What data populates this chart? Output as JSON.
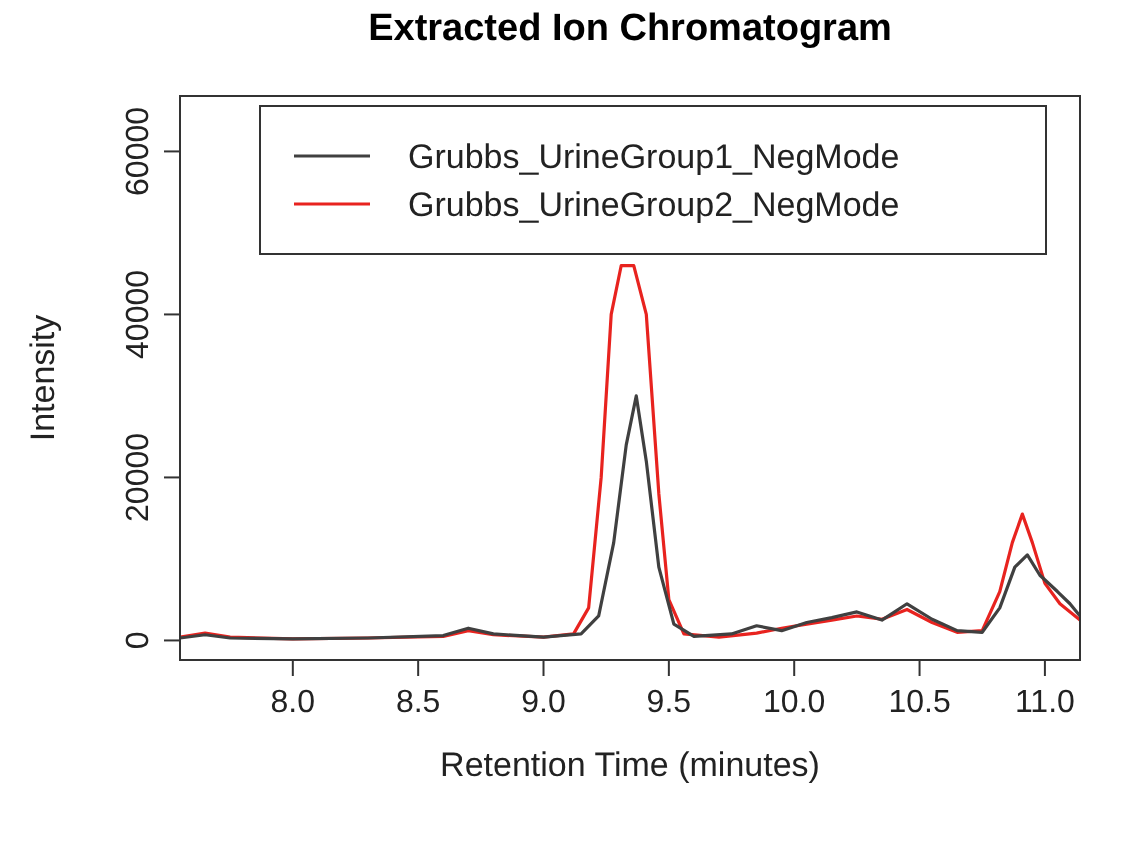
{
  "chart_data": {
    "type": "line",
    "title": "Extracted Ion Chromatogram",
    "xlabel": "Retention Time (minutes)",
    "ylabel": "Intensity",
    "xlim": [
      7.55,
      11.14
    ],
    "xticks": [
      {
        "value": 8,
        "label": "8.0"
      },
      8.5,
      {
        "value": 9,
        "label": "9.0"
      },
      9.5,
      {
        "value": 10,
        "label": "10.0"
      },
      10.5,
      {
        "value": 11,
        "label": "11.0"
      }
    ],
    "ylim": [
      -2400,
      66800
    ],
    "yticks": [
      0,
      20000,
      40000,
      60000
    ],
    "legend": "top right",
    "grid": false,
    "line_style": "solid",
    "series": [
      {
        "name": "Grubbs_UrineGroup1_NegMode",
        "color": "#404040",
        "x": [
          7.55,
          7.65,
          7.75,
          8.0,
          8.3,
          8.6,
          8.7,
          8.8,
          9.0,
          9.15,
          9.22,
          9.28,
          9.33,
          9.37,
          9.41,
          9.46,
          9.52,
          9.6,
          9.75,
          9.85,
          9.95,
          10.05,
          10.15,
          10.25,
          10.35,
          10.45,
          10.55,
          10.65,
          10.75,
          10.82,
          10.88,
          10.93,
          10.98,
          11.05,
          11.1,
          11.14
        ],
        "values": [
          300,
          700,
          300,
          200,
          300,
          600,
          1500,
          800,
          400,
          800,
          3000,
          12000,
          24000,
          30000,
          22000,
          9000,
          2000,
          500,
          800,
          1800,
          1200,
          2200,
          2800,
          3500,
          2500,
          4500,
          2600,
          1200,
          1000,
          4000,
          9000,
          10500,
          8000,
          6000,
          4500,
          3000
        ]
      },
      {
        "name": "Grubbs_UrineGroup2_NegMode",
        "color": "#e8231f",
        "x": [
          7.55,
          7.65,
          7.75,
          8.0,
          8.3,
          8.6,
          8.7,
          8.8,
          9.0,
          9.12,
          9.18,
          9.23,
          9.27,
          9.31,
          9.36,
          9.41,
          9.46,
          9.5,
          9.56,
          9.7,
          9.85,
          9.95,
          10.05,
          10.15,
          10.25,
          10.35,
          10.45,
          10.55,
          10.65,
          10.75,
          10.82,
          10.87,
          10.91,
          10.95,
          11.0,
          11.06,
          11.14
        ],
        "values": [
          400,
          900,
          400,
          200,
          300,
          500,
          1200,
          700,
          400,
          800,
          4000,
          20000,
          40000,
          46000,
          46000,
          40000,
          18000,
          5000,
          800,
          400,
          900,
          1500,
          2000,
          2500,
          3000,
          2600,
          3800,
          2200,
          1000,
          1200,
          6000,
          12000,
          15500,
          12000,
          7000,
          4500,
          2500
        ]
      }
    ]
  }
}
